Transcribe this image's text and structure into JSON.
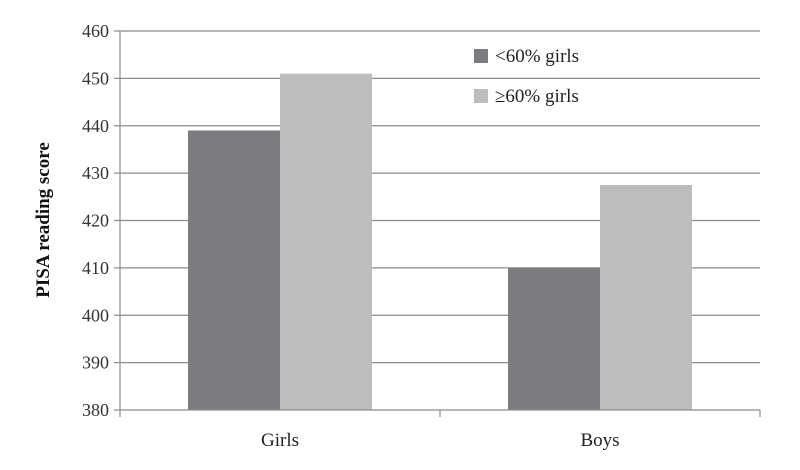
{
  "chart_data": {
    "type": "bar",
    "title": "",
    "xlabel": "",
    "ylabel": "PISA reading score",
    "categories": [
      "Girls",
      "Boys"
    ],
    "series": [
      {
        "name": "<60% girls",
        "values": [
          439,
          410
        ],
        "color": "#7b7c7f"
      },
      {
        "name": "≥60% girls",
        "values": [
          451,
          427.5
        ],
        "color": "#bcbdbf"
      }
    ],
    "ylim": [
      380,
      460
    ],
    "yticks": [
      "380",
      "390",
      "400",
      "410",
      "420",
      "430",
      "440",
      "450",
      "460"
    ],
    "grid": true,
    "legend_position": "top-right"
  }
}
